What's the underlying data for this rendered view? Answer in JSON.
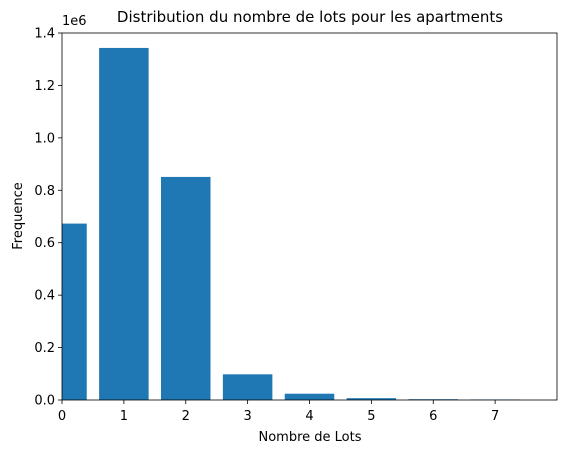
{
  "chart_data": {
    "type": "bar",
    "title": "Distribution du nombre de lots pour les apartments",
    "xlabel": "Nombre de Lots",
    "ylabel": "Frequence",
    "y_offset_label": "1e6",
    "categories": [
      "0",
      "1",
      "2",
      "3",
      "4",
      "5",
      "6",
      "7"
    ],
    "x": [
      0,
      1,
      2,
      3,
      4,
      5,
      6,
      7
    ],
    "values": [
      673000,
      1343000,
      851000,
      98000,
      24000,
      7000,
      3000,
      2000
    ],
    "xlim": [
      0,
      8
    ],
    "ylim": [
      0,
      1400000
    ],
    "xticks": [
      "0",
      "1",
      "2",
      "3",
      "4",
      "5",
      "6",
      "7"
    ],
    "yticks": [
      "0.0",
      "0.2",
      "0.4",
      "0.6",
      "0.8",
      "1.0",
      "1.2",
      "1.4"
    ],
    "ytick_values": [
      0,
      200000,
      400000,
      600000,
      800000,
      1000000,
      1200000,
      1400000
    ],
    "grid": false,
    "colors": {
      "bar": "#1f77b4",
      "axis": "#000000",
      "background": "#ffffff"
    }
  }
}
